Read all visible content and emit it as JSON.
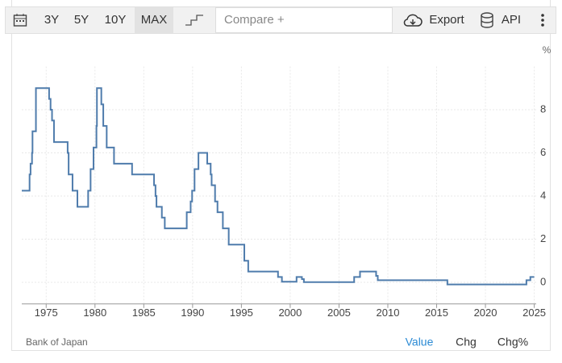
{
  "toolbar": {
    "ranges": [
      "3Y",
      "5Y",
      "10Y",
      "MAX"
    ],
    "compare": "Compare +",
    "export": "Export",
    "api": "API"
  },
  "chart_data": {
    "type": "step-line",
    "ylabel": "%",
    "color": "#4f7cac",
    "x": [
      1972.5,
      1973.3,
      1973.4,
      1973.55,
      1973.6,
      1973.95,
      1975.3,
      1975.45,
      1975.6,
      1975.8,
      1977.2,
      1977.3,
      1977.7,
      1978.2,
      1979.3,
      1979.55,
      1979.85,
      1980.15,
      1980.2,
      1980.65,
      1980.85,
      1981.2,
      1981.95,
      1983.8,
      1986.05,
      1986.2,
      1986.3,
      1986.85,
      1987.15,
      1989.4,
      1989.8,
      1989.95,
      1990.2,
      1990.6,
      1991.5,
      1991.85,
      1991.95,
      1992.3,
      1992.55,
      1993.1,
      1993.7,
      1995.3,
      1995.7,
      1998.75,
      1999.15,
      2000.65,
      2001.2,
      2001.4,
      2006.55,
      2007.15,
      2008.8,
      2008.97,
      2016.1,
      2024.2,
      2024.6,
      2025.0
    ],
    "values": [
      4.25,
      5,
      5.5,
      6,
      7,
      9,
      8.5,
      8,
      7.5,
      6.5,
      6,
      5,
      4.25,
      3.5,
      4.25,
      5.25,
      6.25,
      7.25,
      9,
      8.25,
      7.25,
      6.25,
      5.5,
      5,
      4.5,
      4,
      3.5,
      3,
      2.5,
      3.25,
      3.75,
      4.25,
      5.25,
      6,
      5.5,
      5,
      4.5,
      3.75,
      3.25,
      2.5,
      1.75,
      1,
      0.5,
      0.25,
      0.03,
      0.25,
      0.15,
      0.01,
      0.25,
      0.5,
      0.3,
      0.1,
      -0.1,
      0.1,
      0.25,
      0.25
    ],
    "xlim": [
      1972.5,
      2025.2
    ],
    "ylim": [
      -1,
      10
    ],
    "xticks": [
      1975,
      1980,
      1985,
      1990,
      1995,
      2000,
      2005,
      2010,
      2015,
      2020,
      2025
    ],
    "yticks": [
      0,
      2,
      4,
      6,
      8
    ],
    "grid": true
  },
  "footer": {
    "source": "Bank of Japan",
    "tabs": [
      "Value",
      "Chg",
      "Chg%"
    ]
  }
}
